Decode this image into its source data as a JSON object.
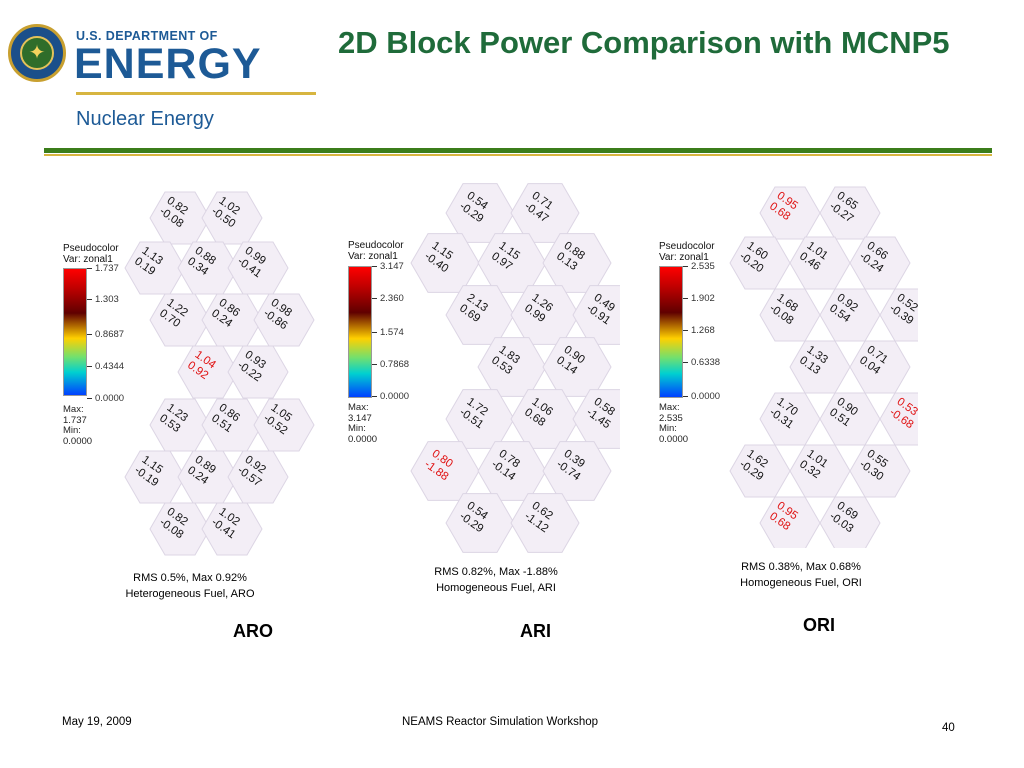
{
  "header": {
    "agency_line": "U.S. DEPARTMENT OF",
    "agency_name": "ENERGY",
    "office": "Nuclear Energy",
    "title": "2D Block Power Comparison with MCNP5"
  },
  "colors": {
    "title_green": "#1f6b3a",
    "doe_blue": "#1d5a96",
    "rule_green": "#3b7d1a",
    "rule_gold": "#d7b540",
    "highlight_red": "#e01010"
  },
  "plots": [
    {
      "legend": {
        "title": "Pseudocolor",
        "var": "Var: zonal1",
        "ticks": [
          "1.737",
          "1.303",
          "0.8687",
          "0.4344",
          "0.0000"
        ],
        "max": "Max: 1.737",
        "min": "Min: 0.0000"
      },
      "cells": [
        {
          "v": "0.82",
          "d": "-0.08",
          "red": false
        },
        {
          "v": "1.02",
          "d": "-0.50",
          "red": false
        },
        {
          "v": "1.13",
          "d": "0.19",
          "red": false
        },
        {
          "v": "0.88",
          "d": "0.34",
          "red": false
        },
        {
          "v": "0.99",
          "d": "-0.41",
          "red": false
        },
        {
          "v": "1.22",
          "d": "0.70",
          "red": false
        },
        {
          "v": "0.86",
          "d": "0.24",
          "red": false
        },
        {
          "v": "0.98",
          "d": "-0.86",
          "red": false
        },
        {
          "v": "1.04",
          "d": "0.92",
          "red": true
        },
        {
          "v": "0.93",
          "d": "-0.22",
          "red": false
        },
        {
          "v": "1.23",
          "d": "0.53",
          "red": false
        },
        {
          "v": "0.86",
          "d": "0.51",
          "red": false
        },
        {
          "v": "1.05",
          "d": "-0.52",
          "red": false
        },
        {
          "v": "1.15",
          "d": "-0.19",
          "red": false
        },
        {
          "v": "0.89",
          "d": "0.24",
          "red": false
        },
        {
          "v": "0.92",
          "d": "-0.57",
          "red": false
        },
        {
          "v": "0.82",
          "d": "-0.08",
          "red": false
        },
        {
          "v": "1.02",
          "d": "-0.41",
          "red": false
        }
      ],
      "caption": [
        "RMS 0.5%, Max 0.92%",
        "Heterogeneous Fuel, ARO"
      ],
      "label": "ARO"
    },
    {
      "legend": {
        "title": "Pseudocolor",
        "var": "Var: zonal1",
        "ticks": [
          "3.147",
          "2.360",
          "1.574",
          "0.7868",
          "0.0000"
        ],
        "max": "Max: 3.147",
        "min": "Min: 0.0000"
      },
      "cells": [
        {
          "v": "0.54",
          "d": "-0.29",
          "red": false
        },
        {
          "v": "0.71",
          "d": "-0.47",
          "red": false
        },
        {
          "v": "1.15",
          "d": "-0.40",
          "red": false
        },
        {
          "v": "1.15",
          "d": "0.97",
          "red": false
        },
        {
          "v": "0.88",
          "d": "0.13",
          "red": false
        },
        {
          "v": "2.13",
          "d": "0.69",
          "red": false
        },
        {
          "v": "1.26",
          "d": "0.99",
          "red": false
        },
        {
          "v": "0.49",
          "d": "-0.91",
          "red": false
        },
        {
          "v": "1.83",
          "d": "0.53",
          "red": false
        },
        {
          "v": "0.90",
          "d": "0.14",
          "red": false
        },
        {
          "v": "1.72",
          "d": "-0.51",
          "red": false
        },
        {
          "v": "1.06",
          "d": "0.68",
          "red": false
        },
        {
          "v": "0.58",
          "d": "-1.45",
          "red": false
        },
        {
          "v": "0.80",
          "d": "-1.88",
          "red": true
        },
        {
          "v": "0.78",
          "d": "-0.14",
          "red": false
        },
        {
          "v": "0.39",
          "d": "-0.74",
          "red": false
        },
        {
          "v": "0.54",
          "d": "-0.29",
          "red": false
        },
        {
          "v": "0.62",
          "d": "-1.12",
          "red": false
        }
      ],
      "caption": [
        "RMS 0.82%, Max -1.88%",
        "Homogeneous Fuel, ARI"
      ],
      "label": "ARI"
    },
    {
      "legend": {
        "title": "Pseudocolor",
        "var": "Var: zonal1",
        "ticks": [
          "2.535",
          "1.902",
          "1.268",
          "0.6338",
          "0.0000"
        ],
        "max": "Max: 2.535",
        "min": "Min: 0.0000"
      },
      "cells": [
        {
          "v": "0.95",
          "d": "0.68",
          "red": true
        },
        {
          "v": "0.65",
          "d": "-0.27",
          "red": false
        },
        {
          "v": "1.60",
          "d": "-0.20",
          "red": false
        },
        {
          "v": "1.01",
          "d": "0.46",
          "red": false
        },
        {
          "v": "0.66",
          "d": "-0.24",
          "red": false
        },
        {
          "v": "1.68",
          "d": "-0.08",
          "red": false
        },
        {
          "v": "0.92",
          "d": "0.54",
          "red": false
        },
        {
          "v": "0.52",
          "d": "-0.39",
          "red": false
        },
        {
          "v": "1.33",
          "d": "0.13",
          "red": false
        },
        {
          "v": "0.71",
          "d": "0.04",
          "red": false
        },
        {
          "v": "1.70",
          "d": "-0.31",
          "red": false
        },
        {
          "v": "0.90",
          "d": "0.51",
          "red": false
        },
        {
          "v": "0.53",
          "d": "-0.68",
          "red": true
        },
        {
          "v": "1.62",
          "d": "-0.29",
          "red": false
        },
        {
          "v": "1.01",
          "d": "0.32",
          "red": false
        },
        {
          "v": "0.55",
          "d": "-0.30",
          "red": false
        },
        {
          "v": "0.95",
          "d": "0.68",
          "red": true
        },
        {
          "v": "0.69",
          "d": "-0.03",
          "red": false
        }
      ],
      "caption": [
        "RMS 0.38%, Max 0.68%",
        "Homogeneous Fuel, ORI"
      ],
      "label": "ORI"
    }
  ],
  "footer": {
    "date": "May 19, 2009",
    "event": "NEAMS Reactor Simulation Workshop",
    "page": "40"
  }
}
